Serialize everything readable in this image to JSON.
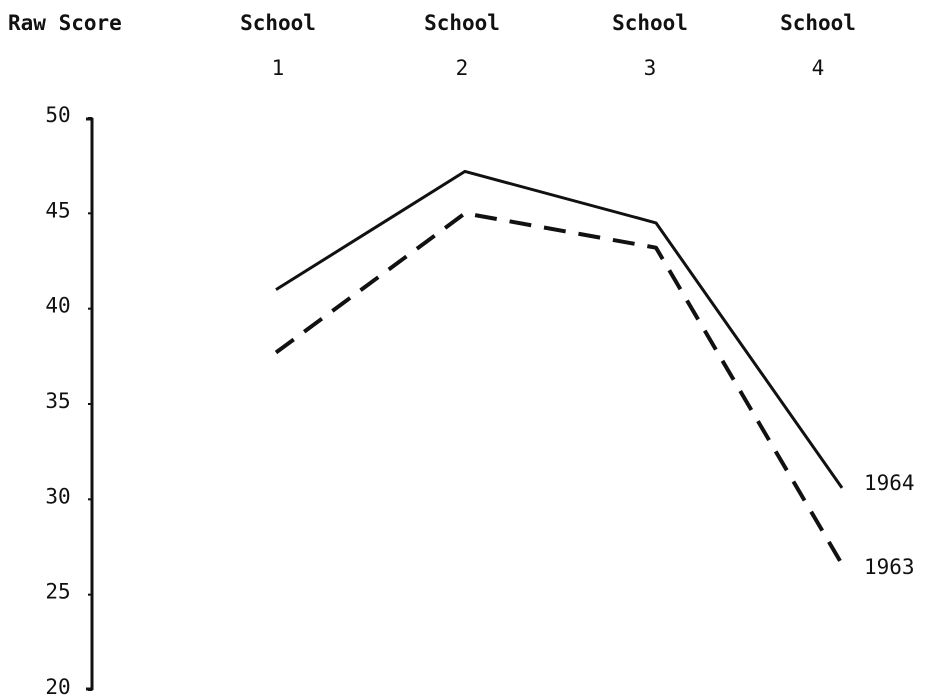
{
  "chart_data": {
    "type": "line",
    "ylabel": "Raw Score",
    "categories": [
      {
        "line1": "School",
        "line2": "1"
      },
      {
        "line1": "School",
        "line2": "2"
      },
      {
        "line1": "School",
        "line2": "3"
      },
      {
        "line1": "School",
        "line2": "4"
      }
    ],
    "ylim": [
      20,
      50
    ],
    "yticks": [
      50,
      45,
      40,
      35,
      30,
      25,
      20
    ],
    "grid": false,
    "series": [
      {
        "name": "1964",
        "style": "solid",
        "color": "#111111",
        "values": [
          41.0,
          47.2,
          44.5,
          30.6
        ]
      },
      {
        "name": "1963",
        "style": "dashed",
        "color": "#111111",
        "values": [
          37.7,
          45.0,
          43.2,
          26.6
        ]
      }
    ]
  }
}
